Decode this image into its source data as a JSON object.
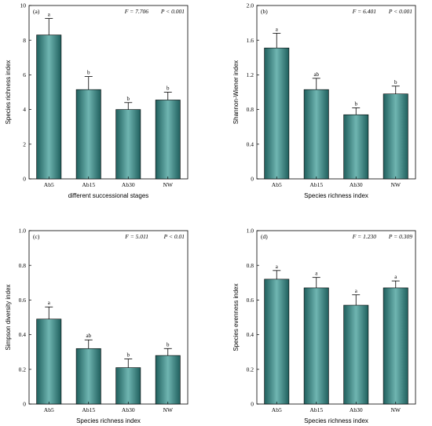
{
  "chart_data": [
    {
      "type": "bar",
      "panel_label": "(a)",
      "stat_f": "F = 7.706",
      "stat_p": "P < 0.001",
      "categories": [
        "Ab5",
        "Ab15",
        "Ab30",
        "NW"
      ],
      "values": [
        8.3,
        5.15,
        4.0,
        4.55
      ],
      "errors": [
        0.95,
        0.75,
        0.4,
        0.45
      ],
      "letters": [
        "a",
        "b",
        "b",
        "b"
      ],
      "xlabel": "different successional stages",
      "ylabel": "Species richness index",
      "ylim": [
        0,
        10
      ],
      "yticks": [
        "0",
        "2",
        "4",
        "6",
        "8",
        "10"
      ],
      "bar_color": "#3f8f8c"
    },
    {
      "type": "bar",
      "panel_label": "(b)",
      "stat_f": "F = 6.401",
      "stat_p": "P < 0.001",
      "categories": [
        "Ab5",
        "Ab15",
        "Ab30",
        "NW"
      ],
      "values": [
        1.51,
        1.03,
        0.74,
        0.98
      ],
      "errors": [
        0.17,
        0.13,
        0.08,
        0.09
      ],
      "letters": [
        "a",
        "ab",
        "b",
        "b"
      ],
      "xlabel": "Species richness index",
      "ylabel": "Shannon-Wiener index",
      "ylim": [
        0,
        2.0
      ],
      "yticks": [
        "0",
        "0.4",
        "0.8",
        "1.2",
        "1.6",
        "2.0"
      ],
      "bar_color": "#3f8f8c"
    },
    {
      "type": "bar",
      "panel_label": "(c)",
      "stat_f": "F = 5.011",
      "stat_p": "P < 0.01",
      "categories": [
        "Ab5",
        "Ab15",
        "Ab30",
        "NW"
      ],
      "values": [
        0.49,
        0.32,
        0.21,
        0.28
      ],
      "errors": [
        0.07,
        0.05,
        0.05,
        0.04
      ],
      "letters": [
        "a",
        "ab",
        "b",
        "b"
      ],
      "xlabel": "Species richness index",
      "ylabel": "Simpson diversity index",
      "ylim": [
        0,
        1.0
      ],
      "yticks": [
        "0",
        "0.2",
        "0.4",
        "0.6",
        "0.8",
        "1.0"
      ],
      "bar_color": "#3f8f8c"
    },
    {
      "type": "bar",
      "panel_label": "(d)",
      "stat_f": "F = 1.230",
      "stat_p": "P = 0.309",
      "categories": [
        "Ab5",
        "Ab15",
        "Ab30",
        "NW"
      ],
      "values": [
        0.72,
        0.67,
        0.57,
        0.67
      ],
      "errors": [
        0.05,
        0.06,
        0.06,
        0.04
      ],
      "letters": [
        "a",
        "a",
        "a",
        "a"
      ],
      "xlabel": "Species richness index",
      "ylabel": "Species evenness index",
      "ylim": [
        0,
        1.0
      ],
      "yticks": [
        "0",
        "0.2",
        "0.4",
        "0.6",
        "0.8",
        "1.0"
      ],
      "bar_color": "#3f8f8c"
    }
  ]
}
